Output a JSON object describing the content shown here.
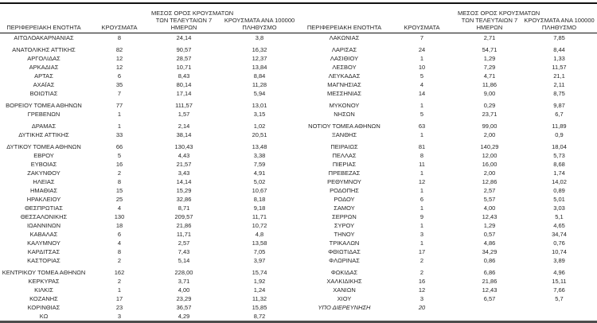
{
  "table": {
    "column_headers": {
      "region": "ΠΕΡΙΦΕΡΕΙΑΚΗ ΕΝΟΤΗΤΑ",
      "cases": "ΚΡΟΥΣΜΑΤΑ",
      "avg7_lines": [
        "ΜΕΣΟΣ ΟΡΟΣ ΚΡΟΥΣΜΑΤΩΝ",
        "ΤΩΝ ΤΕΛΕΥΤΑΙΩΝ 7",
        "ΗΜΕΡΩΝ"
      ],
      "per100k_lines": [
        "ΚΡΟΥΣΜΑΤΑ ΑΝΑ 100000",
        "ΠΛΗΘΥΣΜΟ"
      ]
    },
    "group_breaks": [
      1,
      7,
      9,
      11,
      25
    ],
    "left_rows": [
      {
        "region": "ΑΙΤΩΛΟΑΚΑΡΝΑΝΙΑΣ",
        "cases": "8",
        "avg7": "24,14",
        "per100k": "3,8"
      },
      {
        "region": "ΑΝΑΤΟΛΙΚΗΣ ΑΤΤΙΚΗΣ",
        "cases": "82",
        "avg7": "90,57",
        "per100k": "16,32"
      },
      {
        "region": "ΑΡΓΟΛΙΔΑΣ",
        "cases": "12",
        "avg7": "28,57",
        "per100k": "12,37"
      },
      {
        "region": "ΑΡΚΑΔΙΑΣ",
        "cases": "12",
        "avg7": "10,71",
        "per100k": "13,84"
      },
      {
        "region": "ΑΡΤΑΣ",
        "cases": "6",
        "avg7": "8,43",
        "per100k": "8,84"
      },
      {
        "region": "ΑΧΑΪΑΣ",
        "cases": "35",
        "avg7": "80,14",
        "per100k": "11,28"
      },
      {
        "region": "ΒΟΙΩΤΙΑΣ",
        "cases": "7",
        "avg7": "17,14",
        "per100k": "5,94"
      },
      {
        "region": "ΒΟΡΕΙΟΥ ΤΟΜΕΑ ΑΘΗΝΩΝ",
        "cases": "77",
        "avg7": "111,57",
        "per100k": "13,01"
      },
      {
        "region": "ΓΡΕΒΕΝΩΝ",
        "cases": "1",
        "avg7": "1,57",
        "per100k": "3,15"
      },
      {
        "region": "ΔΡΑΜΑΣ",
        "cases": "1",
        "avg7": "2,14",
        "per100k": "1,02"
      },
      {
        "region": "ΔΥΤΙΚΗΣ ΑΤΤΙΚΗΣ",
        "cases": "33",
        "avg7": "38,14",
        "per100k": "20,51"
      },
      {
        "region": "ΔΥΤΙΚΟΥ ΤΟΜΕΑ ΑΘΗΝΩΝ",
        "cases": "66",
        "avg7": "130,43",
        "per100k": "13,48"
      },
      {
        "region": "ΕΒΡΟΥ",
        "cases": "5",
        "avg7": "4,43",
        "per100k": "3,38"
      },
      {
        "region": "ΕΥΒΟΙΑΣ",
        "cases": "16",
        "avg7": "21,57",
        "per100k": "7,59"
      },
      {
        "region": "ΖΑΚΥΝΘΟΥ",
        "cases": "2",
        "avg7": "3,43",
        "per100k": "4,91"
      },
      {
        "region": "ΗΛΕΙΑΣ",
        "cases": "8",
        "avg7": "14,14",
        "per100k": "5,02"
      },
      {
        "region": "ΗΜΑΘΙΑΣ",
        "cases": "15",
        "avg7": "15,29",
        "per100k": "10,67"
      },
      {
        "region": "ΗΡΑΚΛΕΙΟΥ",
        "cases": "25",
        "avg7": "32,86",
        "per100k": "8,18"
      },
      {
        "region": "ΘΕΣΠΡΩΤΙΑΣ",
        "cases": "4",
        "avg7": "8,71",
        "per100k": "9,18"
      },
      {
        "region": "ΘΕΣΣΑΛΟΝΙΚΗΣ",
        "cases": "130",
        "avg7": "209,57",
        "per100k": "11,71"
      },
      {
        "region": "ΙΩΑΝΝΙΝΩΝ",
        "cases": "18",
        "avg7": "21,86",
        "per100k": "10,72"
      },
      {
        "region": "ΚΑΒΑΛΑΣ",
        "cases": "6",
        "avg7": "11,71",
        "per100k": "4,8"
      },
      {
        "region": "ΚΑΛΥΜΝΟΥ",
        "cases": "4",
        "avg7": "2,57",
        "per100k": "13,58"
      },
      {
        "region": "ΚΑΡΔΙΤΣΑΣ",
        "cases": "8",
        "avg7": "7,43",
        "per100k": "7,05"
      },
      {
        "region": "ΚΑΣΤΟΡΙΑΣ",
        "cases": "2",
        "avg7": "5,14",
        "per100k": "3,97"
      },
      {
        "region": "ΚΕΝΤΡΙΚΟΥ ΤΟΜΕΑ ΑΘΗΝΩΝ",
        "cases": "162",
        "avg7": "228,00",
        "per100k": "15,74"
      },
      {
        "region": "ΚΕΡΚΥΡΑΣ",
        "cases": "2",
        "avg7": "3,71",
        "per100k": "1,92"
      },
      {
        "region": "ΚΙΛΚΙΣ",
        "cases": "1",
        "avg7": "4,00",
        "per100k": "1,24"
      },
      {
        "region": "ΚΟΖΑΝΗΣ",
        "cases": "17",
        "avg7": "23,29",
        "per100k": "11,32"
      },
      {
        "region": "ΚΟΡΙΝΘΙΑΣ",
        "cases": "23",
        "avg7": "36,57",
        "per100k": "15,85"
      },
      {
        "region": "ΚΩ",
        "cases": "3",
        "avg7": "4,29",
        "per100k": "8,72"
      }
    ],
    "right_rows": [
      {
        "region": "ΛΑΚΩΝΙΑΣ",
        "cases": "7",
        "avg7": "2,71",
        "per100k": "7,85"
      },
      {
        "region": "ΛΑΡΙΣΑΣ",
        "cases": "24",
        "avg7": "54,71",
        "per100k": "8,44"
      },
      {
        "region": "ΛΑΣΙΘΙΟΥ",
        "cases": "1",
        "avg7": "1,29",
        "per100k": "1,33"
      },
      {
        "region": "ΛΕΣΒΟΥ",
        "cases": "10",
        "avg7": "7,29",
        "per100k": "11,57"
      },
      {
        "region": "ΛΕΥΚΑΔΑΣ",
        "cases": "5",
        "avg7": "4,71",
        "per100k": "21,1"
      },
      {
        "region": "ΜΑΓΝΗΣΙΑΣ",
        "cases": "4",
        "avg7": "11,86",
        "per100k": "2,11"
      },
      {
        "region": "ΜΕΣΣΗΝΙΑΣ",
        "cases": "14",
        "avg7": "9,00",
        "per100k": "8,75"
      },
      {
        "region": "ΜΥΚΟΝΟΥ",
        "cases": "1",
        "avg7": "0,29",
        "per100k": "9,87"
      },
      {
        "region": "ΝΗΣΩΝ",
        "cases": "5",
        "avg7": "23,71",
        "per100k": "6,7"
      },
      {
        "region": "ΝΟΤΙΟΥ ΤΟΜΕΑ ΑΘΗΝΩΝ",
        "cases": "63",
        "avg7": "99,00",
        "per100k": "11,89"
      },
      {
        "region": "ΞΑΝΘΗΣ",
        "cases": "1",
        "avg7": "2,00",
        "per100k": "0,9"
      },
      {
        "region": "ΠΕΙΡΑΙΩΣ",
        "cases": "81",
        "avg7": "140,29",
        "per100k": "18,04"
      },
      {
        "region": "ΠΕΛΛΑΣ",
        "cases": "8",
        "avg7": "12,00",
        "per100k": "5,73"
      },
      {
        "region": "ΠΙΕΡΙΑΣ",
        "cases": "11",
        "avg7": "16,00",
        "per100k": "8,68"
      },
      {
        "region": "ΠΡΕΒΕΖΑΣ",
        "cases": "1",
        "avg7": "2,00",
        "per100k": "1,74"
      },
      {
        "region": "ΡΕΘΥΜΝΟΥ",
        "cases": "12",
        "avg7": "12,86",
        "per100k": "14,02"
      },
      {
        "region": "ΡΟΔΟΠΗΣ",
        "cases": "1",
        "avg7": "2,57",
        "per100k": "0,89"
      },
      {
        "region": "ΡΟΔΟΥ",
        "cases": "6",
        "avg7": "5,57",
        "per100k": "5,01"
      },
      {
        "region": "ΣΑΜΟΥ",
        "cases": "1",
        "avg7": "4,00",
        "per100k": "3,03"
      },
      {
        "region": "ΣΕΡΡΩΝ",
        "cases": "9",
        "avg7": "12,43",
        "per100k": "5,1"
      },
      {
        "region": "ΣΥΡΟΥ",
        "cases": "1",
        "avg7": "1,29",
        "per100k": "4,65"
      },
      {
        "region": "ΤΗΝΟΥ",
        "cases": "3",
        "avg7": "0,57",
        "per100k": "34,74"
      },
      {
        "region": "ΤΡΙΚΑΛΩΝ",
        "cases": "1",
        "avg7": "4,86",
        "per100k": "0,76"
      },
      {
        "region": "ΦΘΙΩΤΙΔΑΣ",
        "cases": "17",
        "avg7": "34,29",
        "per100k": "10,74"
      },
      {
        "region": "ΦΛΩΡΙΝΑΣ",
        "cases": "2",
        "avg7": "0,86",
        "per100k": "3,89"
      },
      {
        "region": "ΦΩΚΙΔΑΣ",
        "cases": "2",
        "avg7": "6,86",
        "per100k": "4,96"
      },
      {
        "region": "ΧΑΛΚΙΔΙΚΗΣ",
        "cases": "16",
        "avg7": "21,86",
        "per100k": "15,11"
      },
      {
        "region": "ΧΑΝΙΩΝ",
        "cases": "12",
        "avg7": "12,43",
        "per100k": "7,66"
      },
      {
        "region": "ΧΙΟΥ",
        "cases": "3",
        "avg7": "6,57",
        "per100k": "5,7"
      },
      {
        "region": "ΥΠΟ ΔΙΕΡΕΥΝΗΣΗ",
        "cases": "20",
        "avg7": "",
        "per100k": "",
        "italic": true
      }
    ]
  },
  "colors": {
    "border_top": "#111111",
    "border_header": "#111111",
    "border_bottom": "#4d4d4d",
    "text": "#262626"
  }
}
